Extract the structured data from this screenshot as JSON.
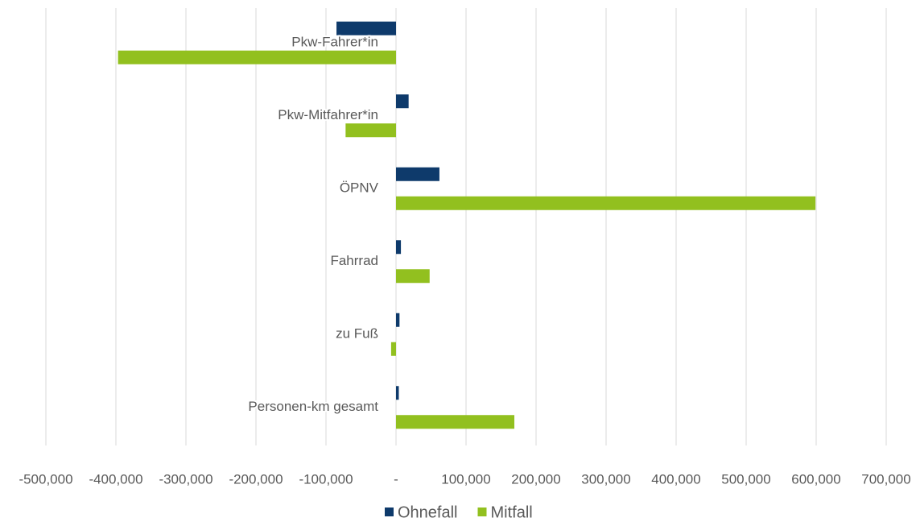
{
  "chart_data": {
    "type": "hbar",
    "categories": [
      "Pkw-Fahrer*in",
      "Pkw-Mitfahrer*in",
      "ÖPNV",
      "Fahrrad",
      "zu Fuß",
      "Personen-km gesamt"
    ],
    "series": [
      {
        "name": "Ohnefall",
        "color": "#0e3a6b",
        "values": [
          -85000,
          18000,
          62000,
          7000,
          5000,
          4000
        ]
      },
      {
        "name": "Mitfall",
        "color": "#92c01f",
        "values": [
          -397000,
          -72000,
          599000,
          48000,
          -7000,
          169000
        ]
      }
    ],
    "xlim": [
      -500000,
      700000
    ],
    "xticks": [
      {
        "value": -500000,
        "label": "-500,000"
      },
      {
        "value": -400000,
        "label": "-400,000"
      },
      {
        "value": -300000,
        "label": "-300,000"
      },
      {
        "value": -200000,
        "label": "-200,000"
      },
      {
        "value": -100000,
        "label": "-100,000"
      },
      {
        "value": 0,
        "label": "-"
      },
      {
        "value": 100000,
        "label": "100,000"
      },
      {
        "value": 200000,
        "label": "200,000"
      },
      {
        "value": 300000,
        "label": "300,000"
      },
      {
        "value": 400000,
        "label": "400,000"
      },
      {
        "value": 500000,
        "label": "500,000"
      },
      {
        "value": 600000,
        "label": "600,000"
      },
      {
        "value": 700000,
        "label": "700,000"
      }
    ],
    "grid": true,
    "legend": "bottom"
  }
}
